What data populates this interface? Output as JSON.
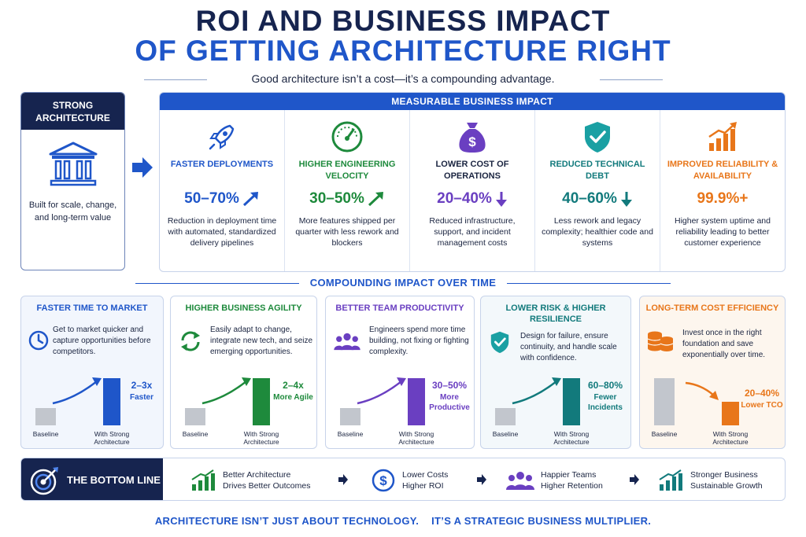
{
  "header": {
    "title_line1": "ROI AND BUSINESS IMPACT",
    "title_line2": "OF GETTING ARCHITECTURE RIGHT",
    "subtitle": "Good architecture isn’t a cost—it’s a compounding advantage."
  },
  "architecture_card": {
    "title": "STRONG ARCHITECTURE",
    "icon": "bank-building-icon",
    "description": "Built for scale, change, and long-term value"
  },
  "impact": {
    "header": "MEASURABLE BUSINESS IMPACT",
    "items": [
      {
        "icon": "rocket-icon",
        "title": "FASTER DEPLOYMENTS",
        "value": "50–70%",
        "trend": "up",
        "description": "Reduction in deployment time with automated, standardized delivery pipelines",
        "color": "#1f56c9"
      },
      {
        "icon": "speedometer-icon",
        "title": "HIGHER ENGINEERING VELOCITY",
        "value": "30–50%",
        "trend": "up",
        "description": "More features shipped per quarter with less rework and blockers",
        "color": "#1e8a3c"
      },
      {
        "icon": "money-bag-icon",
        "title": "LOWER COST OF OPERATIONS",
        "value": "20–40%",
        "trend": "down",
        "description": "Reduced infrastructure, support, and incident management costs",
        "color": "#6a3fc1"
      },
      {
        "icon": "shield-check-icon",
        "title": "REDUCED TECHNICAL DEBT",
        "value": "40–60%",
        "trend": "down",
        "description": "Less rework and legacy complexity; healthier code and systems",
        "color": "#127a7c"
      },
      {
        "icon": "growth-chart-icon",
        "title": "IMPROVED RELIABILITY & AVAILABILITY",
        "value": "99.9%+",
        "trend": "none",
        "description": "Higher system uptime and reliability leading to better customer experience",
        "color": "#e8761a"
      }
    ]
  },
  "compounding": {
    "title": "COMPOUNDING IMPACT OVER TIME",
    "cards": [
      {
        "title": "FASTER TIME TO MARKET",
        "icon": "clock-icon",
        "description": "Get to market quicker and capture opportunities before competitors.",
        "multiplier": "2–3x",
        "multiplier_label": "Faster",
        "baseline_label": "Baseline",
        "strong_label": "With Strong Architecture",
        "baseline_level": 0.36,
        "strong_level": 1.0,
        "color": "#1f56c9",
        "bg": "#f2f6fd"
      },
      {
        "title": "HIGHER BUSINESS AGILITY",
        "icon": "refresh-cycle-icon",
        "description": "Easily adapt to change, integrate new tech, and seize emerging opportunities.",
        "multiplier": "2–4x",
        "multiplier_label": "More Agile",
        "baseline_label": "Baseline",
        "strong_label": "With Strong Architecture",
        "baseline_level": 0.36,
        "strong_level": 1.0,
        "color": "#1e8a3c",
        "bg": "#ffffff"
      },
      {
        "title": "BETTER TEAM PRODUCTIVITY",
        "icon": "team-icon",
        "description": "Engineers spend more time building, not fixing or fighting complexity.",
        "multiplier": "30–50%",
        "multiplier_label": "More Productive",
        "baseline_label": "Baseline",
        "strong_label": "With Strong Architecture",
        "baseline_level": 0.36,
        "strong_level": 1.0,
        "color": "#6a3fc1",
        "bg": "#ffffff"
      },
      {
        "title": "LOWER RISK & HIGHER RESILIENCE",
        "icon": "shield-check-icon",
        "description": "Design for failure, ensure continuity, and handle scale with confidence.",
        "multiplier": "60–80%",
        "multiplier_label": "Fewer Incidents",
        "baseline_label": "Baseline",
        "strong_label": "With Strong Architecture",
        "baseline_level": 0.36,
        "strong_level": 1.0,
        "color": "#127a7c",
        "bg": "#f3f8fb"
      },
      {
        "title": "LONG-TERM COST EFFICIENCY",
        "icon": "coin-stack-icon",
        "description": "Invest once in the right foundation and save exponentially over time.",
        "multiplier": "20–40%",
        "multiplier_label": "Lower TCO",
        "baseline_label": "Baseline",
        "strong_label": "With Strong Architecture",
        "baseline_level": 1.0,
        "strong_level": 0.5,
        "color": "#e8761a",
        "bg": "#fdf6ee"
      }
    ]
  },
  "bottom_line": {
    "title": "THE BOTTOM LINE",
    "icon": "target-icon",
    "items": [
      {
        "icon": "growth-chart-icon",
        "line1": "Better Architecture",
        "line2": "Drives Better Outcomes",
        "color": "#1e8a3c"
      },
      {
        "icon": "dollar-circle-icon",
        "line1": "Lower Costs",
        "line2": "Higher ROI",
        "color": "#1f56c9"
      },
      {
        "icon": "team-icon",
        "line1": "Happier Teams",
        "line2": "Higher Retention",
        "color": "#6a3fc1"
      },
      {
        "icon": "growth-chart-icon",
        "line1": "Stronger Business",
        "line2": "Sustainable Growth",
        "color": "#127a7c"
      }
    ]
  },
  "footer": {
    "part1": "ARCHITECTURE ISN’T JUST ABOUT TECHNOLOGY.",
    "part2": "IT’S A STRATEGIC BUSINESS MULTIPLIER."
  }
}
